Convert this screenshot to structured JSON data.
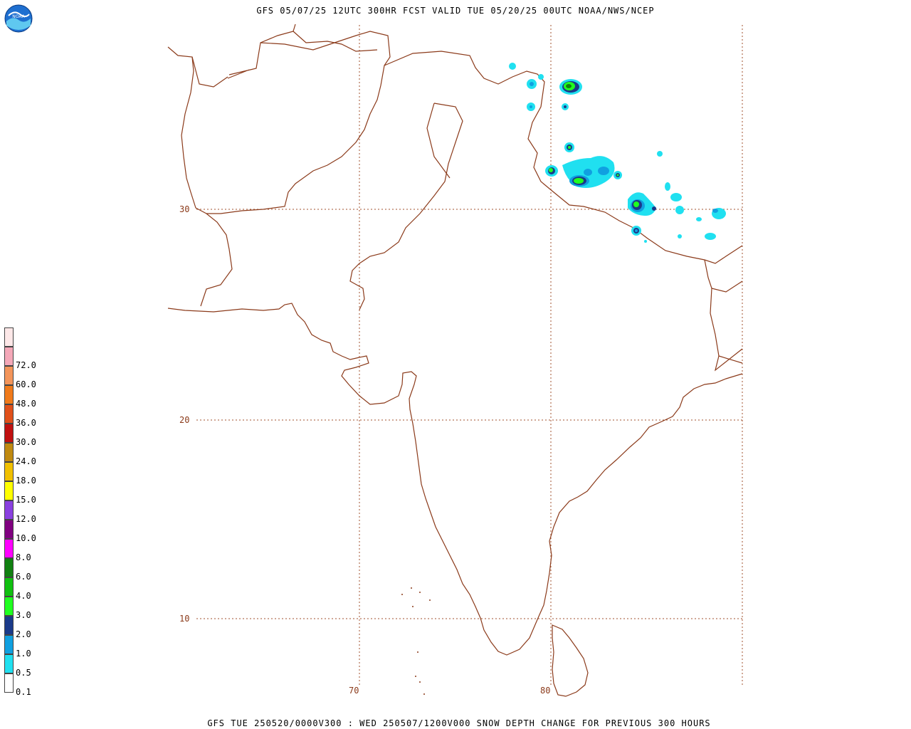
{
  "header": {
    "title": "GFS 05/07/25 12UTC 300HR FCST VALID TUE 05/20/25 00UTC NOAA/NWS/NCEP"
  },
  "footer": {
    "caption": "GFS TUE 250520/0000V300 : WED 250507/1200V000 SNOW DEPTH CHANGE FOR PREVIOUS 300 HOURS"
  },
  "logo": {
    "text": "NOAA"
  },
  "legend": {
    "items": [
      {
        "label": "",
        "color": "#fde8e8"
      },
      {
        "label": "72.0",
        "color": "#f4a8b8"
      },
      {
        "label": "60.0",
        "color": "#f3955a"
      },
      {
        "label": "48.0",
        "color": "#f07a1a"
      },
      {
        "label": "36.0",
        "color": "#e0501a"
      },
      {
        "label": "30.0",
        "color": "#c01010"
      },
      {
        "label": "24.0",
        "color": "#c08a10"
      },
      {
        "label": "18.0",
        "color": "#f0c000"
      },
      {
        "label": "15.0",
        "color": "#ffff00"
      },
      {
        "label": "12.0",
        "color": "#8a40e0"
      },
      {
        "label": "10.0",
        "color": "#800080"
      },
      {
        "label": "8.0",
        "color": "#ff00ff"
      },
      {
        "label": "6.0",
        "color": "#108010"
      },
      {
        "label": "4.0",
        "color": "#10c010"
      },
      {
        "label": "3.0",
        "color": "#20ff20"
      },
      {
        "label": "2.0",
        "color": "#1a3a8a"
      },
      {
        "label": "1.0",
        "color": "#10a0e0"
      },
      {
        "label": "0.5",
        "color": "#20e0f0"
      },
      {
        "label": "0.1",
        "color": "#ffffff"
      }
    ]
  },
  "grid": {
    "lat_labels": [
      "30",
      "20",
      "10"
    ],
    "lon_labels": [
      "70",
      "80"
    ]
  },
  "colors": {
    "coast": "#8b3a1a",
    "grid": "#a0522d"
  }
}
